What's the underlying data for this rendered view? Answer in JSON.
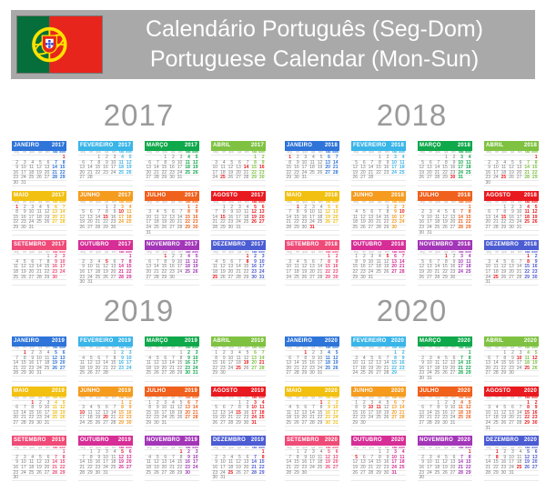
{
  "header": {
    "title_pt": "Calendário Português (Seg-Dom)",
    "title_en": "Portuguese Calendar (Mon-Sun)",
    "bar_color": "#a9a9a9",
    "text_color": "#ffffff"
  },
  "flag": {
    "name": "portugal-flag",
    "green": "#056e3a",
    "red": "#e8251c",
    "yellow": "#ffe200",
    "shield_white": "#ffffff",
    "shield_blue": "#2b3fd0"
  },
  "calendar": {
    "weekday_labels": [
      "seg",
      "ter",
      "qua",
      "qui",
      "sex",
      "sáb",
      "dom"
    ],
    "month_colors": [
      "#2e74d9",
      "#3ab5e8",
      "#0fa84b",
      "#7fc242",
      "#f2c011",
      "#f59b1e",
      "#f0611d",
      "#e81a1f",
      "#ef4b78",
      "#d62e96",
      "#a336b8",
      "#4c5cd2"
    ],
    "weekday_text_color": "#7a7a7a",
    "holiday_color": "#e8191c",
    "year_title_color": "#9a9a9a",
    "years": [
      {
        "year": "2017",
        "months": [
          {
            "name": "JANEIRO",
            "first_dow": 6,
            "days": 31,
            "holidays": [
              1
            ]
          },
          {
            "name": "FEVEREIRO",
            "first_dow": 2,
            "days": 28,
            "holidays": []
          },
          {
            "name": "MARÇO",
            "first_dow": 2,
            "days": 31,
            "holidays": []
          },
          {
            "name": "ABRIL",
            "first_dow": 5,
            "days": 30,
            "holidays": [
              14,
              16,
              25
            ]
          },
          {
            "name": "MAIO",
            "first_dow": 0,
            "days": 31,
            "holidays": [
              1
            ]
          },
          {
            "name": "JUNHO",
            "first_dow": 3,
            "days": 30,
            "holidays": [
              10,
              15
            ]
          },
          {
            "name": "JULHO",
            "first_dow": 5,
            "days": 31,
            "holidays": []
          },
          {
            "name": "AGOSTO",
            "first_dow": 1,
            "days": 31,
            "holidays": [
              15
            ]
          },
          {
            "name": "SETEMBRO",
            "first_dow": 4,
            "days": 30,
            "holidays": []
          },
          {
            "name": "OUTUBRO",
            "first_dow": 6,
            "days": 31,
            "holidays": [
              5
            ]
          },
          {
            "name": "NOVEMBRO",
            "first_dow": 2,
            "days": 30,
            "holidays": [
              1
            ]
          },
          {
            "name": "DEZEMBRO",
            "first_dow": 4,
            "days": 31,
            "holidays": [
              1,
              8,
              25
            ]
          }
        ]
      },
      {
        "year": "2018",
        "months": [
          {
            "name": "JANEIRO",
            "first_dow": 0,
            "days": 31,
            "holidays": [
              1
            ]
          },
          {
            "name": "FEVEREIRO",
            "first_dow": 3,
            "days": 28,
            "holidays": []
          },
          {
            "name": "MARÇO",
            "first_dow": 3,
            "days": 31,
            "holidays": [
              30
            ]
          },
          {
            "name": "ABRIL",
            "first_dow": 6,
            "days": 30,
            "holidays": [
              1,
              25
            ]
          },
          {
            "name": "MAIO",
            "first_dow": 1,
            "days": 31,
            "holidays": [
              1,
              31
            ]
          },
          {
            "name": "JUNHO",
            "first_dow": 4,
            "days": 30,
            "holidays": [
              10
            ]
          },
          {
            "name": "JULHO",
            "first_dow": 6,
            "days": 31,
            "holidays": []
          },
          {
            "name": "AGOSTO",
            "first_dow": 2,
            "days": 31,
            "holidays": [
              15
            ]
          },
          {
            "name": "SETEMBRO",
            "first_dow": 5,
            "days": 30,
            "holidays": []
          },
          {
            "name": "OUTUBRO",
            "first_dow": 0,
            "days": 31,
            "holidays": [
              5
            ]
          },
          {
            "name": "NOVEMBRO",
            "first_dow": 3,
            "days": 30,
            "holidays": [
              1
            ]
          },
          {
            "name": "DEZEMBRO",
            "first_dow": 5,
            "days": 31,
            "holidays": [
              1,
              8,
              25
            ]
          }
        ]
      },
      {
        "year": "2019",
        "months": [
          {
            "name": "JANEIRO",
            "first_dow": 1,
            "days": 31,
            "holidays": [
              1
            ]
          },
          {
            "name": "FEVEREIRO",
            "first_dow": 4,
            "days": 28,
            "holidays": []
          },
          {
            "name": "MARÇO",
            "first_dow": 4,
            "days": 31,
            "holidays": []
          },
          {
            "name": "ABRIL",
            "first_dow": 0,
            "days": 30,
            "holidays": [
              19,
              21,
              25
            ]
          },
          {
            "name": "MAIO",
            "first_dow": 2,
            "days": 31,
            "holidays": [
              1
            ]
          },
          {
            "name": "JUNHO",
            "first_dow": 5,
            "days": 30,
            "holidays": [
              10,
              20
            ]
          },
          {
            "name": "JULHO",
            "first_dow": 0,
            "days": 31,
            "holidays": []
          },
          {
            "name": "AGOSTO",
            "first_dow": 3,
            "days": 31,
            "holidays": [
              15
            ]
          },
          {
            "name": "SETEMBRO",
            "first_dow": 6,
            "days": 30,
            "holidays": []
          },
          {
            "name": "OUTUBRO",
            "first_dow": 1,
            "days": 31,
            "holidays": [
              5
            ]
          },
          {
            "name": "NOVEMBRO",
            "first_dow": 4,
            "days": 30,
            "holidays": [
              1
            ]
          },
          {
            "name": "DEZEMBRO",
            "first_dow": 6,
            "days": 31,
            "holidays": [
              1,
              8,
              25
            ]
          }
        ]
      },
      {
        "year": "2020",
        "months": [
          {
            "name": "JANEIRO",
            "first_dow": 2,
            "days": 31,
            "holidays": [
              1
            ]
          },
          {
            "name": "FEVEREIRO",
            "first_dow": 5,
            "days": 29,
            "holidays": []
          },
          {
            "name": "MARÇO",
            "first_dow": 6,
            "days": 31,
            "holidays": []
          },
          {
            "name": "ABRIL",
            "first_dow": 2,
            "days": 30,
            "holidays": [
              10,
              12,
              25
            ]
          },
          {
            "name": "MAIO",
            "first_dow": 4,
            "days": 31,
            "holidays": [
              1
            ]
          },
          {
            "name": "JUNHO",
            "first_dow": 0,
            "days": 30,
            "holidays": [
              10,
              11
            ]
          },
          {
            "name": "JULHO",
            "first_dow": 2,
            "days": 31,
            "holidays": []
          },
          {
            "name": "AGOSTO",
            "first_dow": 5,
            "days": 31,
            "holidays": [
              15
            ]
          },
          {
            "name": "SETEMBRO",
            "first_dow": 1,
            "days": 30,
            "holidays": []
          },
          {
            "name": "OUTUBRO",
            "first_dow": 3,
            "days": 31,
            "holidays": [
              5
            ]
          },
          {
            "name": "NOVEMBRO",
            "first_dow": 6,
            "days": 30,
            "holidays": [
              1
            ]
          },
          {
            "name": "DEZEMBRO",
            "first_dow": 1,
            "days": 31,
            "holidays": [
              1,
              8,
              25
            ]
          }
        ]
      }
    ]
  }
}
